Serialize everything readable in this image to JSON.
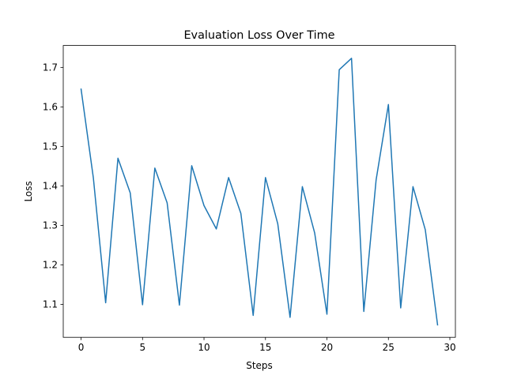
{
  "chart_data": {
    "type": "line",
    "title": "Evaluation Loss Over Time",
    "xlabel": "Steps",
    "ylabel": "Loss",
    "xlim": [
      -1.45,
      30.45
    ],
    "ylim": [
      1.0165,
      1.7555
    ],
    "xticks": [
      0,
      5,
      10,
      15,
      20,
      25,
      30
    ],
    "yticks": [
      1.1,
      1.2,
      1.3,
      1.4,
      1.5,
      1.6,
      1.7
    ],
    "grid": false,
    "series": [
      {
        "color": "#1f77b4",
        "x": [
          0,
          1,
          2,
          3,
          4,
          5,
          6,
          7,
          8,
          9,
          10,
          11,
          12,
          13,
          14,
          15,
          16,
          17,
          18,
          19,
          20,
          21,
          22,
          23,
          24,
          25,
          26,
          27,
          28,
          29
        ],
        "y": [
          1.645,
          1.42,
          1.104,
          1.47,
          1.382,
          1.099,
          1.445,
          1.357,
          1.098,
          1.451,
          1.35,
          1.291,
          1.421,
          1.33,
          1.072,
          1.421,
          1.304,
          1.067,
          1.398,
          1.281,
          1.075,
          1.694,
          1.723,
          1.082,
          1.415,
          1.606,
          1.091,
          1.398,
          1.289,
          1.048
        ]
      }
    ]
  }
}
